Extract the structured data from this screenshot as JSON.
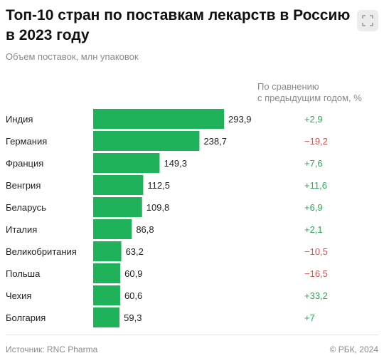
{
  "header": {
    "title_line1": "Топ-10 стран по поставкам лекарств в Россию",
    "title_line2": "в 2023 году",
    "subtitle": "Объем поставок, млн упаковок",
    "comparison_line1": "По сравнению",
    "comparison_line2": "с предыдущим годом, %"
  },
  "footer": {
    "source": "Источник: RNC Pharma",
    "copyright": "© РБК, 2024"
  },
  "colors": {
    "bar": "#1fb25a",
    "positive": "#2ea85a",
    "negative": "#d9534f"
  },
  "chart_data": {
    "type": "bar",
    "orientation": "horizontal",
    "categories": [
      "Индия",
      "Германия",
      "Франция",
      "Венгрия",
      "Беларусь",
      "Италия",
      "Великобритания",
      "Польша",
      "Чехия",
      "Болгария"
    ],
    "values": [
      293.9,
      238.7,
      149.3,
      112.5,
      109.8,
      86.8,
      63.2,
      60.9,
      60.6,
      59.3
    ],
    "value_labels": [
      "293,9",
      "238,7",
      "149,3",
      "112,5",
      "109,8",
      "86,8",
      "63,2",
      "60,9",
      "60,6",
      "59,3"
    ],
    "change_labels": [
      "+2,9",
      "−19,2",
      "+7,6",
      "+11,6",
      "+6,9",
      "+2,1",
      "−10,5",
      "−16,5",
      "+33,2",
      "+7"
    ],
    "change_values": [
      2.9,
      -19.2,
      7.6,
      11.6,
      6.9,
      2.1,
      -10.5,
      -16.5,
      33.2,
      7
    ],
    "xlim": [
      0,
      293.9
    ]
  }
}
